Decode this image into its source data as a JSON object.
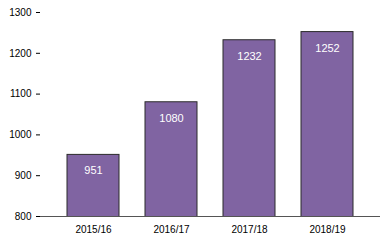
{
  "chart_data": {
    "type": "bar",
    "categories": [
      "2015/16",
      "2016/17",
      "2017/18",
      "2018/19"
    ],
    "values": [
      951,
      1080,
      1232,
      1252
    ],
    "color": "#8064a2",
    "ylim": [
      800,
      1300
    ],
    "yticks": [
      800,
      900,
      1000,
      1100,
      1200,
      1300
    ],
    "data_labels": true
  }
}
